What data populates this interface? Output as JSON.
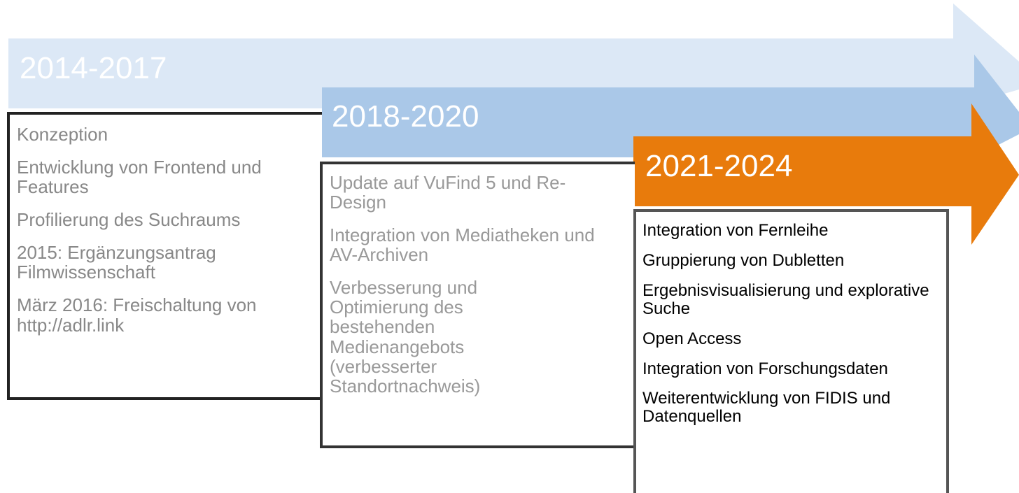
{
  "phases": [
    {
      "period": "2014-2017",
      "items": [
        "Konzeption",
        "Entwicklung von Frontend und Features",
        "Profilierung des Suchraums",
        "2015: Ergänzungsantrag Filmwissenschaft",
        "März 2016: Freischaltung von http://adlr.link"
      ]
    },
    {
      "period": "2018-2020",
      "items": [
        "Update auf VuFind 5 und Re-Design",
        "Integration von Mediatheken und AV-Archiven",
        "Verbesserung und Optimierung des bestehenden Medienangebots (verbesserter Standortnachweis)"
      ]
    },
    {
      "period": "2021-2024",
      "items": [
        "Integration von Fernleihe",
        "Gruppierung von Dubletten",
        "Ergebnisvisualisierung und explorative Suche",
        "Open Access",
        "Integration von Forschungsdaten",
        "Weiterentwicklung von FIDIS und Datenquellen"
      ]
    }
  ]
}
